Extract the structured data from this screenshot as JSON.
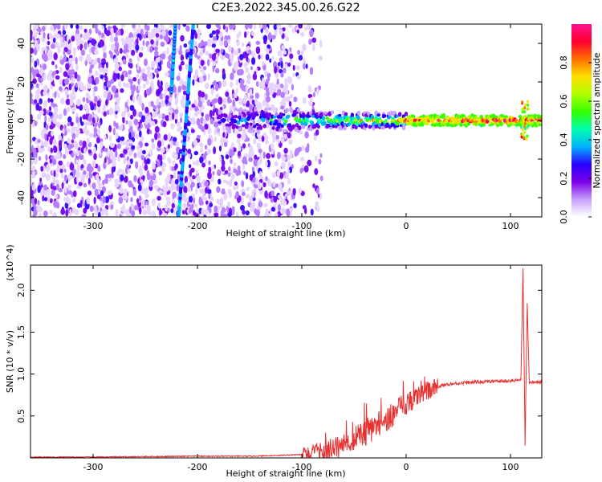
{
  "title": "C2E3.2022.345.00.26.G22",
  "chart_data": [
    {
      "type": "heatmap",
      "xlabel": "Height of straight line (km)",
      "ylabel": "Frequency (Hz)",
      "xlim": [
        -360,
        130
      ],
      "ylim": [
        -50,
        50
      ],
      "xticks": [
        -300,
        -200,
        -100,
        0,
        100
      ],
      "yticks": [
        -40,
        -20,
        0,
        20,
        40
      ],
      "colorbar": {
        "label": "Normalized spectral amplitude",
        "range": [
          0,
          1
        ],
        "ticks": [
          "0.0",
          "0.2",
          "0.4",
          "0.6",
          "0.8"
        ],
        "tick_values": [
          0.0,
          0.2,
          0.4,
          0.6,
          0.8
        ],
        "colors": [
          "#ffffff",
          "#c8a0ff",
          "#7a00e6",
          "#2a00ff",
          "#00b0ff",
          "#00ffb0",
          "#33ff00",
          "#b0ff00",
          "#ffe000",
          "#ff7000",
          "#ff0030",
          "#ff1090"
        ]
      },
      "features": {
        "noise_region_x": [
          -360,
          -100
        ],
        "direct_signal_center_hz": 0,
        "streaks": [
          {
            "x_start": -218,
            "y_start": -50,
            "x_end": -204,
            "y_end": 50
          },
          {
            "x_start": -225,
            "y_start": 15,
            "x_end": -221,
            "y_end": 50
          }
        ]
      }
    },
    {
      "type": "line",
      "xlabel": "Height of straight line (km)",
      "ylabel": "SNR (10 * v/v)",
      "multiplier": "(x10^4)",
      "xlim": [
        -360,
        130
      ],
      "ylim": [
        0,
        2.3
      ],
      "xticks": [
        -300,
        -200,
        -100,
        0,
        100
      ],
      "yticks": [
        0.5,
        1.0,
        1.5,
        2.0
      ],
      "ytick_labels": [
        "0.5",
        "1.0",
        "1.5",
        "2.0"
      ],
      "color": "#e83030",
      "series": [
        {
          "x": [
            -360,
            -300,
            -200,
            -150,
            -120,
            -100,
            -80,
            -60,
            -40,
            -20,
            -10,
            0,
            10,
            20,
            30,
            40,
            60,
            80,
            100,
            110,
            112,
            114,
            116,
            118,
            120,
            130
          ],
          "y": [
            0.01,
            0.01,
            0.02,
            0.02,
            0.03,
            0.04,
            0.08,
            0.15,
            0.3,
            0.45,
            0.55,
            0.65,
            0.73,
            0.8,
            0.85,
            0.88,
            0.9,
            0.91,
            0.92,
            0.93,
            2.25,
            0.15,
            1.85,
            0.88,
            0.9,
            0.91
          ]
        }
      ]
    }
  ]
}
